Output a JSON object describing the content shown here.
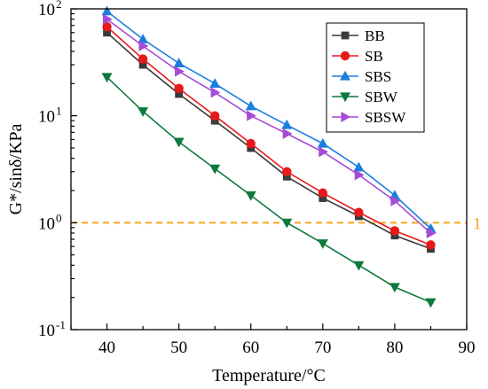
{
  "chart_data": {
    "type": "line",
    "xlabel": "Temperature/°C",
    "ylabel": "G*/sinδ/KPa",
    "xlim": [
      35,
      90
    ],
    "ylim": [
      0.1,
      100
    ],
    "yscale": "log",
    "x_ticks": [
      40,
      50,
      60,
      70,
      80,
      90
    ],
    "y_tick_labels": [
      {
        "base": "10",
        "exp": "-1",
        "value": 0.1
      },
      {
        "base": "10",
        "exp": "0",
        "value": 1
      },
      {
        "base": "10",
        "exp": "1",
        "value": 10
      },
      {
        "base": "10",
        "exp": "2",
        "value": 100
      }
    ],
    "legend_position": "top-right",
    "grid": false,
    "x": [
      40,
      45,
      50,
      55,
      60,
      65,
      70,
      75,
      80,
      85
    ],
    "series": [
      {
        "name": "BB",
        "color": "#3a3a3a",
        "marker": "square",
        "values": [
          60,
          30,
          16,
          9,
          5,
          2.7,
          1.7,
          1.15,
          0.76,
          0.57
        ]
      },
      {
        "name": "SB",
        "color": "#e8191b",
        "marker": "circle",
        "values": [
          68,
          34,
          18,
          10,
          5.5,
          3.0,
          1.9,
          1.25,
          0.84,
          0.62
        ]
      },
      {
        "name": "SBS",
        "color": "#1a7fdc",
        "marker": "triangle-up",
        "values": [
          95,
          52,
          31,
          20,
          12.3,
          8.2,
          5.5,
          3.3,
          1.8,
          0.88
        ]
      },
      {
        "name": "SBW",
        "color": "#0c7a3c",
        "marker": "triangle-down",
        "values": [
          23,
          11,
          5.7,
          3.2,
          1.8,
          1.0,
          0.64,
          0.4,
          0.25,
          0.18
        ]
      },
      {
        "name": "SBSW",
        "color": "#a64bd6",
        "marker": "triangle-right",
        "values": [
          80,
          45,
          26,
          16.5,
          10,
          6.8,
          4.6,
          2.8,
          1.6,
          0.8
        ]
      }
    ],
    "reference_line": {
      "value": 1,
      "label": "1",
      "color": "#f5a51c"
    }
  }
}
